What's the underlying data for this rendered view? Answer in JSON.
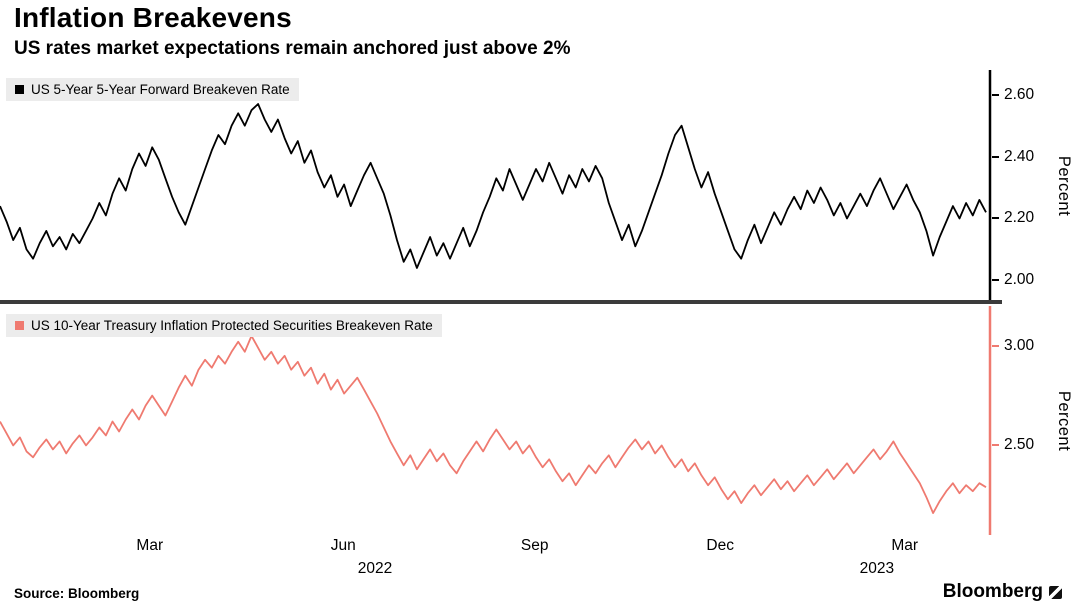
{
  "header": {
    "title": "Inflation Breakevens",
    "subtitle": "US rates market expectations remain anchored just above 2%"
  },
  "footer": {
    "source": "Source: Bloomberg",
    "brand": "Bloomberg"
  },
  "x_axis": {
    "months": [
      {
        "label": "Mar",
        "pos": 0.151
      },
      {
        "label": "Jun",
        "pos": 0.346
      },
      {
        "label": "Sep",
        "pos": 0.539
      },
      {
        "label": "Dec",
        "pos": 0.726
      },
      {
        "label": "Mar",
        "pos": 0.912
      }
    ],
    "years": [
      {
        "label": "2022",
        "pos": 0.378
      },
      {
        "label": "2023",
        "pos": 0.884
      }
    ]
  },
  "chart_data": [
    {
      "type": "line",
      "title": "US 5-Year 5-Year Forward Breakeven Rate",
      "ylabel": "Percent",
      "color": "#000000",
      "axis_color": "#000000",
      "ylim": [
        1.93,
        2.68
      ],
      "yticks": [
        2.0,
        2.2,
        2.4,
        2.6
      ],
      "ytick_labels": [
        "2.00",
        "2.20",
        "2.40",
        "2.60"
      ],
      "x_range": [
        "Jan 2022",
        "Apr 2023"
      ],
      "values": [
        2.24,
        2.19,
        2.13,
        2.17,
        2.1,
        2.07,
        2.12,
        2.16,
        2.11,
        2.14,
        2.1,
        2.15,
        2.12,
        2.16,
        2.2,
        2.25,
        2.21,
        2.28,
        2.33,
        2.29,
        2.36,
        2.41,
        2.37,
        2.43,
        2.39,
        2.33,
        2.27,
        2.22,
        2.18,
        2.24,
        2.3,
        2.36,
        2.42,
        2.47,
        2.44,
        2.5,
        2.54,
        2.5,
        2.55,
        2.57,
        2.52,
        2.48,
        2.52,
        2.46,
        2.41,
        2.45,
        2.38,
        2.42,
        2.35,
        2.3,
        2.34,
        2.27,
        2.31,
        2.24,
        2.29,
        2.34,
        2.38,
        2.33,
        2.28,
        2.21,
        2.13,
        2.06,
        2.1,
        2.04,
        2.09,
        2.14,
        2.08,
        2.12,
        2.07,
        2.12,
        2.17,
        2.11,
        2.16,
        2.22,
        2.27,
        2.33,
        2.29,
        2.36,
        2.31,
        2.26,
        2.31,
        2.36,
        2.32,
        2.38,
        2.33,
        2.28,
        2.34,
        2.3,
        2.36,
        2.32,
        2.37,
        2.33,
        2.25,
        2.19,
        2.13,
        2.18,
        2.11,
        2.16,
        2.22,
        2.28,
        2.34,
        2.41,
        2.47,
        2.5,
        2.43,
        2.36,
        2.3,
        2.35,
        2.28,
        2.22,
        2.16,
        2.1,
        2.07,
        2.13,
        2.18,
        2.12,
        2.17,
        2.22,
        2.18,
        2.23,
        2.27,
        2.23,
        2.29,
        2.25,
        2.3,
        2.26,
        2.21,
        2.25,
        2.2,
        2.24,
        2.28,
        2.24,
        2.29,
        2.33,
        2.28,
        2.23,
        2.27,
        2.31,
        2.26,
        2.22,
        2.16,
        2.08,
        2.14,
        2.19,
        2.24,
        2.2,
        2.25,
        2.21,
        2.26,
        2.22
      ]
    },
    {
      "type": "line",
      "title": "US 10-Year Treasury Inflation Protected Securities Breakeven Rate",
      "ylabel": "Percent",
      "color": "#ef7a70",
      "axis_color": "#ef7a70",
      "ylim": [
        2.05,
        3.2
      ],
      "yticks": [
        2.5,
        3.0
      ],
      "ytick_labels": [
        "2.50",
        "3.00"
      ],
      "x_range": [
        "Jan 2022",
        "Apr 2023"
      ],
      "values": [
        2.62,
        2.56,
        2.5,
        2.54,
        2.47,
        2.44,
        2.49,
        2.53,
        2.48,
        2.52,
        2.46,
        2.51,
        2.55,
        2.5,
        2.54,
        2.59,
        2.55,
        2.62,
        2.57,
        2.63,
        2.68,
        2.63,
        2.7,
        2.75,
        2.7,
        2.65,
        2.72,
        2.79,
        2.85,
        2.8,
        2.88,
        2.93,
        2.89,
        2.95,
        2.91,
        2.97,
        3.02,
        2.97,
        3.05,
        2.99,
        2.93,
        2.97,
        2.91,
        2.95,
        2.88,
        2.92,
        2.85,
        2.89,
        2.81,
        2.86,
        2.78,
        2.83,
        2.76,
        2.8,
        2.84,
        2.78,
        2.72,
        2.66,
        2.59,
        2.52,
        2.46,
        2.4,
        2.45,
        2.38,
        2.43,
        2.48,
        2.42,
        2.46,
        2.4,
        2.36,
        2.42,
        2.47,
        2.52,
        2.47,
        2.53,
        2.58,
        2.53,
        2.48,
        2.52,
        2.46,
        2.5,
        2.44,
        2.39,
        2.43,
        2.37,
        2.32,
        2.36,
        2.3,
        2.35,
        2.4,
        2.36,
        2.41,
        2.45,
        2.39,
        2.44,
        2.49,
        2.53,
        2.48,
        2.52,
        2.46,
        2.5,
        2.44,
        2.39,
        2.43,
        2.37,
        2.41,
        2.35,
        2.3,
        2.34,
        2.28,
        2.23,
        2.27,
        2.21,
        2.26,
        2.3,
        2.25,
        2.29,
        2.33,
        2.28,
        2.32,
        2.27,
        2.31,
        2.35,
        2.3,
        2.34,
        2.38,
        2.33,
        2.37,
        2.41,
        2.36,
        2.4,
        2.44,
        2.48,
        2.43,
        2.47,
        2.52,
        2.46,
        2.41,
        2.36,
        2.31,
        2.24,
        2.16,
        2.22,
        2.27,
        2.31,
        2.26,
        2.3,
        2.27,
        2.31,
        2.29
      ]
    }
  ]
}
